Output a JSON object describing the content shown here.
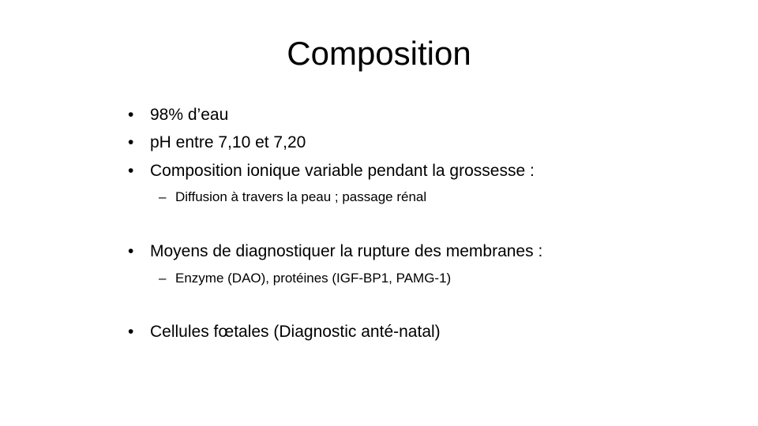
{
  "slide": {
    "title": "Composition",
    "bullet_symbol": "•",
    "sub_symbol": "–",
    "items": [
      {
        "text": "98% d’eau"
      },
      {
        "text": "pH entre 7,10 et 7,20"
      },
      {
        "text": "Composition ionique variable pendant la grossesse  :"
      },
      {
        "text": "Diffusion à travers la peau ; passage rénal"
      },
      {
        "text": "Moyens de diagnostiquer la rupture des membranes :"
      },
      {
        "text": "Enzyme (DAO), protéines (IGF-BP1, PAMG-1)"
      },
      {
        "text": "Cellules fœtales (Diagnostic anté-natal)"
      }
    ]
  }
}
